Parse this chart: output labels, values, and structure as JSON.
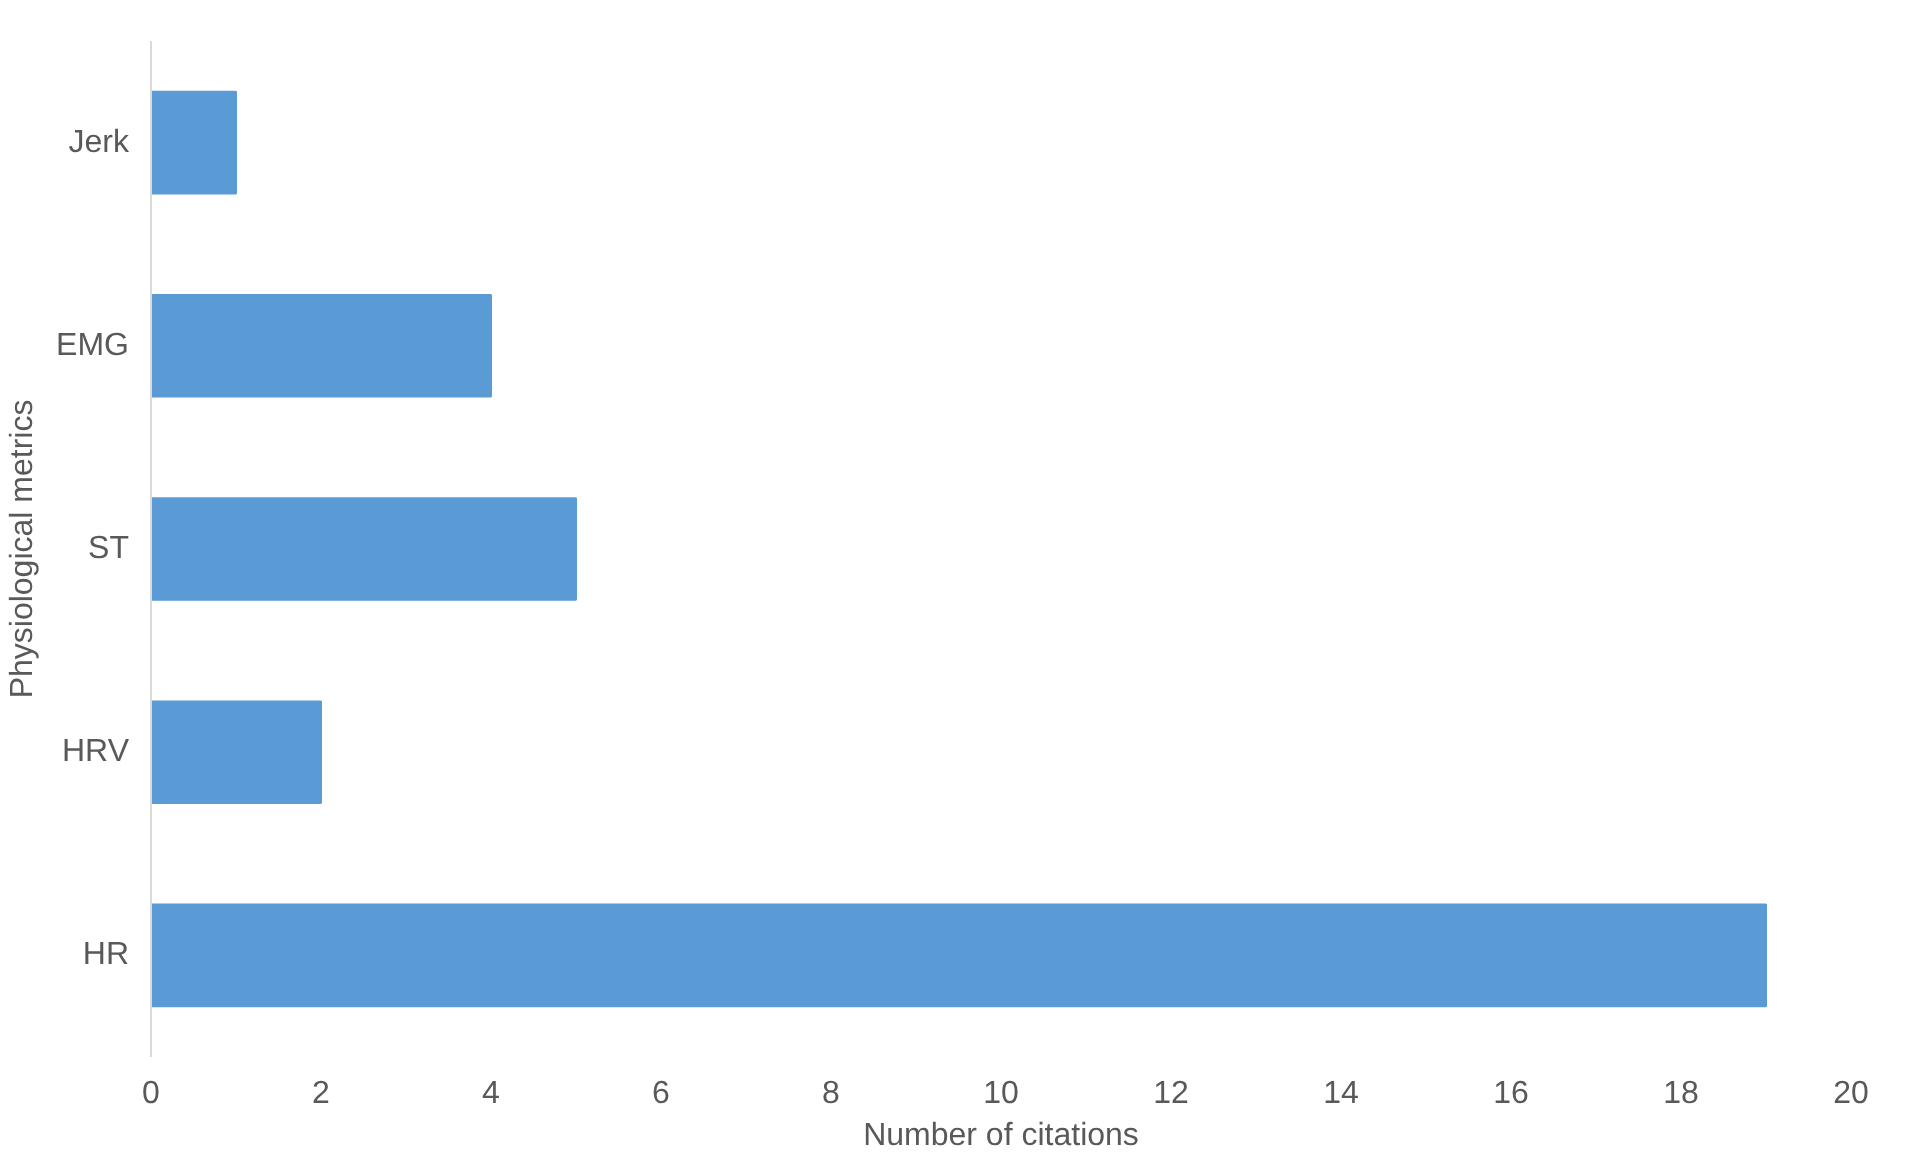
{
  "chart_data": {
    "type": "bar",
    "orientation": "horizontal",
    "xlabel": "Number of citations",
    "ylabel": "Physiological metrics",
    "categories": [
      "Jerk",
      "EMG",
      "ST",
      "HRV",
      "HR"
    ],
    "values": [
      1,
      4,
      5,
      2,
      19
    ],
    "color": "#5b9bd5",
    "xlim": [
      0,
      20
    ],
    "xticks": [
      0,
      2,
      4,
      6,
      8,
      10,
      12,
      14,
      16,
      18,
      20
    ],
    "grid": false
  }
}
